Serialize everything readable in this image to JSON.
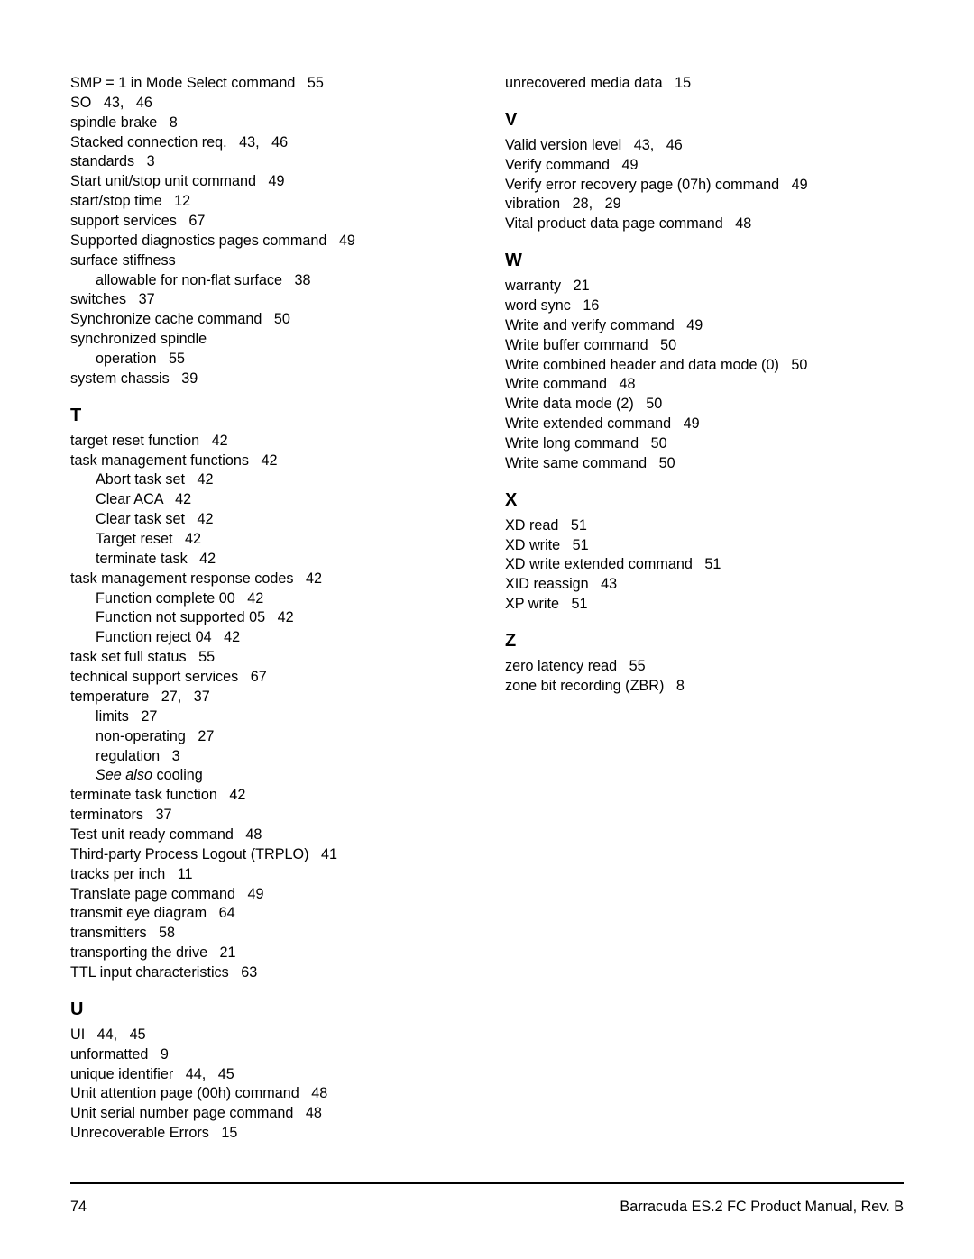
{
  "left": {
    "preEntries": [
      {
        "text": "SMP = 1 in Mode Select command   55"
      },
      {
        "text": "SO   43,   46"
      },
      {
        "text": "spindle brake   8"
      },
      {
        "text": "Stacked connection req.   43,   46"
      },
      {
        "text": "standards   3"
      },
      {
        "text": "Start unit/stop unit command   49"
      },
      {
        "text": "start/stop time   12"
      },
      {
        "text": "support services   67"
      },
      {
        "text": "Supported diagnostics pages command   49"
      },
      {
        "text": "surface stiffness"
      },
      {
        "text": "allowable for non-flat surface   38",
        "sub": true
      },
      {
        "text": "switches   37"
      },
      {
        "text": "Synchronize cache command   50"
      },
      {
        "text": "synchronized spindle"
      },
      {
        "text": "operation   55",
        "sub": true
      },
      {
        "text": "system chassis   39"
      }
    ],
    "sections": [
      {
        "heading": "T",
        "entries": [
          {
            "text": "target reset function   42"
          },
          {
            "text": "task management functions   42"
          },
          {
            "text": "Abort task set   42",
            "sub": true
          },
          {
            "text": "Clear ACA   42",
            "sub": true
          },
          {
            "text": "Clear task set   42",
            "sub": true
          },
          {
            "text": "Target reset   42",
            "sub": true
          },
          {
            "text": "terminate task   42",
            "sub": true
          },
          {
            "text": "task management response codes   42"
          },
          {
            "text": "Function complete 00   42",
            "sub": true
          },
          {
            "text": "Function not supported 05   42",
            "sub": true
          },
          {
            "text": "Function reject 04   42",
            "sub": true
          },
          {
            "text": "task set full status   55"
          },
          {
            "text": "technical support services   67"
          },
          {
            "text": "temperature   27,   37"
          },
          {
            "text": "limits   27",
            "sub": true
          },
          {
            "text": "non-operating   27",
            "sub": true
          },
          {
            "text": "regulation   3",
            "sub": true
          },
          {
            "italicPrefix": "See also ",
            "text": "cooling",
            "sub": true
          },
          {
            "text": "terminate task function   42"
          },
          {
            "text": "terminators   37"
          },
          {
            "text": "Test unit ready command   48"
          },
          {
            "text": "Third-party Process Logout (TRPLO)   41"
          },
          {
            "text": "tracks per inch   11"
          },
          {
            "text": "Translate page command   49"
          },
          {
            "text": "transmit eye diagram   64"
          },
          {
            "text": "transmitters   58"
          },
          {
            "text": "transporting the drive   21"
          },
          {
            "text": "TTL input characteristics   63"
          }
        ]
      },
      {
        "heading": "U",
        "entries": [
          {
            "text": "UI   44,   45"
          },
          {
            "text": "unformatted   9"
          },
          {
            "text": "unique identifier   44,   45"
          },
          {
            "text": "Unit attention page (00h) command   48"
          },
          {
            "text": "Unit serial number page command   48"
          },
          {
            "text": "Unrecoverable Errors   15"
          }
        ]
      }
    ]
  },
  "right": {
    "preEntries": [
      {
        "text": "unrecovered media data   15"
      }
    ],
    "sections": [
      {
        "heading": "V",
        "entries": [
          {
            "text": "Valid version level   43,   46"
          },
          {
            "text": "Verify command   49"
          },
          {
            "text": "Verify error recovery page (07h) command   49"
          },
          {
            "text": "vibration   28,   29"
          },
          {
            "text": "Vital product data page command   48"
          }
        ]
      },
      {
        "heading": "W",
        "entries": [
          {
            "text": "warranty   21"
          },
          {
            "text": "word sync   16"
          },
          {
            "text": "Write and verify command   49"
          },
          {
            "text": "Write buffer command   50"
          },
          {
            "text": "Write combined header and data mode (0)   50"
          },
          {
            "text": "Write command   48"
          },
          {
            "text": "Write data mode (2)   50"
          },
          {
            "text": "Write extended command   49"
          },
          {
            "text": "Write long command   50"
          },
          {
            "text": "Write same command   50"
          }
        ]
      },
      {
        "heading": "X",
        "entries": [
          {
            "text": "XD read   51"
          },
          {
            "text": "XD write   51"
          },
          {
            "text": "XD write extended command   51"
          },
          {
            "text": "XID reassign   43"
          },
          {
            "text": "XP write   51"
          }
        ]
      },
      {
        "heading": "Z",
        "entries": [
          {
            "text": "zero latency read   55"
          },
          {
            "text": "zone bit recording (ZBR)   8"
          }
        ]
      }
    ]
  },
  "footer": {
    "pageNumber": "74",
    "title": "Barracuda ES.2 FC Product Manual, Rev. B"
  }
}
